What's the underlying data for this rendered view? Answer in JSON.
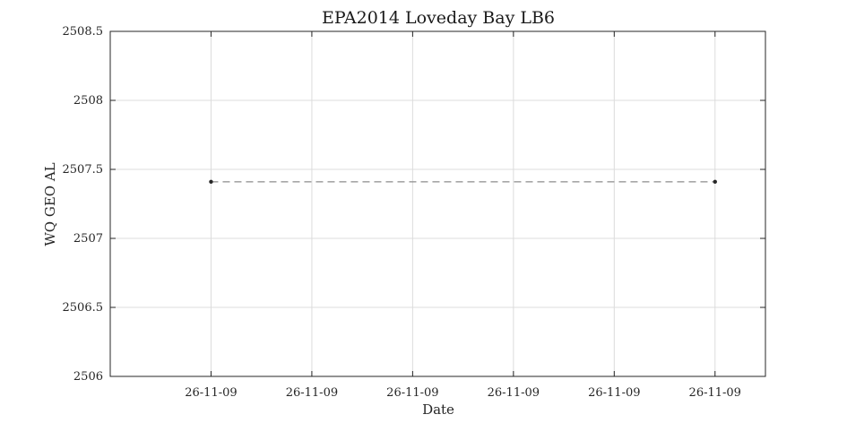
{
  "chart_data": {
    "type": "line",
    "title": "EPA2014 Loveday Bay LB6",
    "xlabel": "Date",
    "ylabel": "WQ GEO AL",
    "ylim": [
      2506,
      2508.5
    ],
    "yticks": [
      2506,
      2506.5,
      2507,
      2507.5,
      2508,
      2508.5
    ],
    "ytick_labels": [
      "2506",
      "2506.5",
      "2507",
      "2507.5",
      "2508",
      "2508.5"
    ],
    "xlim": [
      0,
      6.5
    ],
    "xticks": [
      1,
      2,
      3,
      4,
      5,
      6
    ],
    "xtick_labels": [
      "26-11-09",
      "26-11-09",
      "26-11-09",
      "26-11-09",
      "26-11-09",
      "26-11-09"
    ],
    "grid": true,
    "series": [
      {
        "x": [
          1,
          6
        ],
        "values": [
          2507.41,
          2507.41
        ],
        "color": "#262626",
        "line_color": "#8c8c8c",
        "line_style": "dashed",
        "marker": "dot"
      }
    ]
  }
}
